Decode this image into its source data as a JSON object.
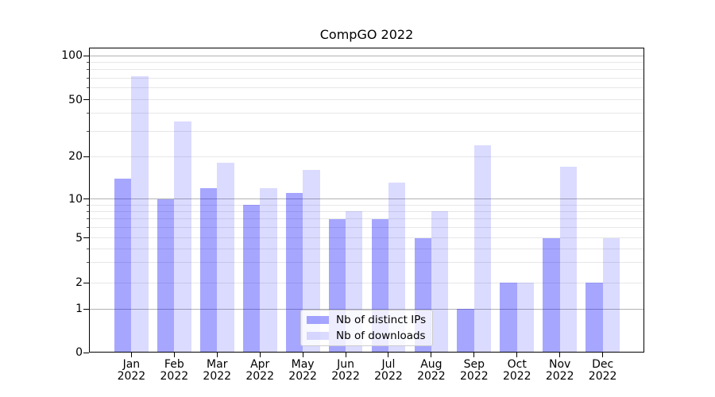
{
  "title": "CompGO 2022",
  "x_axis": {
    "year": "2022",
    "months": [
      "Jan",
      "Feb",
      "Mar",
      "Apr",
      "May",
      "Jun",
      "Jul",
      "Aug",
      "Sep",
      "Oct",
      "Nov",
      "Dec"
    ]
  },
  "y_axis": {
    "tick_values": [
      0,
      1,
      2,
      5,
      10,
      20,
      50,
      100
    ]
  },
  "chart_data": {
    "type": "bar",
    "title": "CompGO 2022",
    "categories": [
      "Jan 2022",
      "Feb 2022",
      "Mar 2022",
      "Apr 2022",
      "May 2022",
      "Jun 2022",
      "Jul 2022",
      "Aug 2022",
      "Sep 2022",
      "Oct 2022",
      "Nov 2022",
      "Dec 2022"
    ],
    "series": [
      {
        "name": "Nb of distinct IPs",
        "values": [
          14,
          10,
          12,
          9,
          11,
          7,
          7,
          5,
          1,
          2,
          5,
          2
        ],
        "color": "rgba(0,0,255,0.35)"
      },
      {
        "name": "Nb of downloads",
        "values": [
          72,
          35,
          18,
          12,
          16,
          8,
          13,
          8,
          24,
          2,
          17,
          5
        ],
        "color": "rgba(0,0,255,0.14)"
      }
    ],
    "xlabel": "",
    "ylabel": "",
    "yscale": "log-like with 0 baseline (labeled ticks 0,1,2,5,10,20,50,100)",
    "ylim": [
      0,
      116
    ],
    "grid": "horizontal, major decades darker + minor lighter",
    "legend_position": "lower center"
  }
}
